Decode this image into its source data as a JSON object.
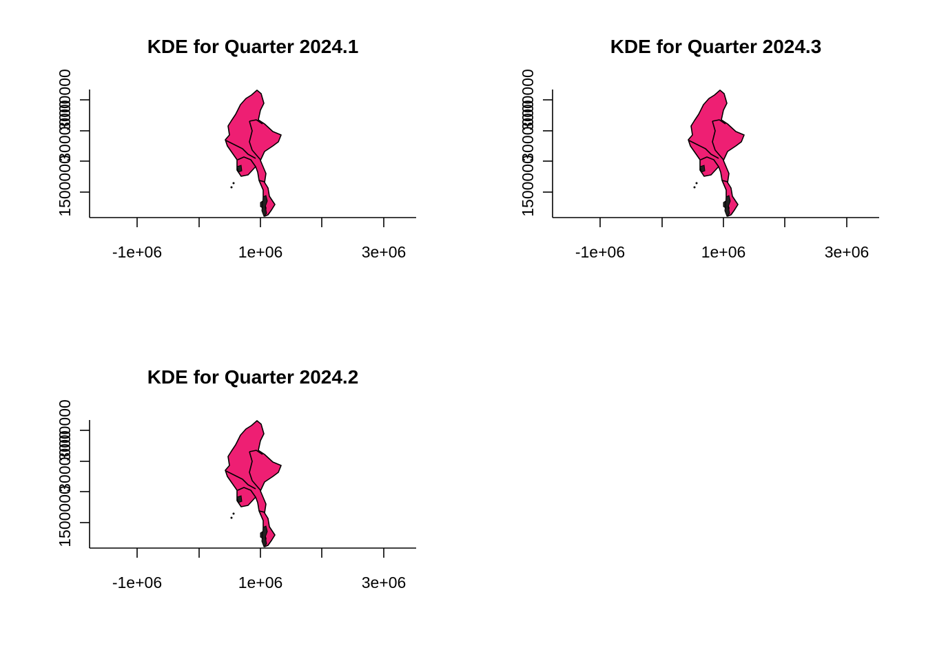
{
  "fill_color": "#EE1F73",
  "border_color": "#000000",
  "panels": [
    {
      "title": "KDE for Quarter 2024.1",
      "x_tick_labels": [
        "-1e+06",
        "1e+06",
        "3e+06"
      ],
      "y_tick_labels": [
        "1500000",
        "3000000"
      ]
    },
    {
      "title": "KDE for Quarter 2024.3",
      "x_tick_labels": [
        "-1e+06",
        "1e+06",
        "3e+06"
      ],
      "y_tick_labels": [
        "1500000",
        "3000000"
      ]
    },
    {
      "title": "KDE for Quarter 2024.2",
      "x_tick_labels": [
        "-1e+06",
        "1e+06",
        "3e+06"
      ],
      "y_tick_labels": [
        "1500000",
        "3000000"
      ]
    }
  ]
}
